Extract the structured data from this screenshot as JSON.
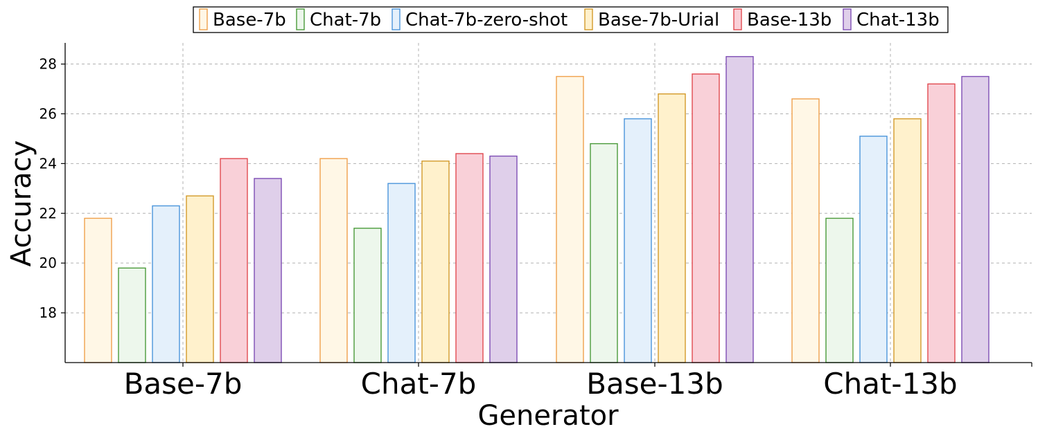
{
  "chart_data": {
    "type": "bar",
    "title": "",
    "xlabel": "Generator",
    "ylabel": "Accuracy",
    "categories": [
      "Base-7b",
      "Chat-7b",
      "Base-13b",
      "Chat-13b"
    ],
    "ylim": [
      16,
      28.85
    ],
    "yticks": [
      18,
      20,
      22,
      24,
      26,
      28
    ],
    "ytick_labels": [
      "18",
      "20",
      "22",
      "24",
      "26",
      "28"
    ],
    "grid": true,
    "legend_position": "top-center",
    "series": [
      {
        "name": "Base-7b",
        "values": [
          21.8,
          24.2,
          27.5,
          26.6
        ],
        "fill": "#fff7e6",
        "stroke": "#f0a04b"
      },
      {
        "name": "Chat-7b",
        "values": [
          19.8,
          21.4,
          24.8,
          21.8
        ],
        "fill": "#edf7ec",
        "stroke": "#4a9a3a"
      },
      {
        "name": "Chat-7b-zero-shot",
        "values": [
          22.3,
          23.2,
          25.8,
          25.1
        ],
        "fill": "#e4f0fb",
        "stroke": "#4a95db"
      },
      {
        "name": "Base-7b-Urial",
        "values": [
          22.7,
          24.1,
          26.8,
          25.8
        ],
        "fill": "#fff1cc",
        "stroke": "#d39a2a"
      },
      {
        "name": "Base-13b",
        "values": [
          24.2,
          24.4,
          27.6,
          27.2
        ],
        "fill": "#f9d0d8",
        "stroke": "#e0494f"
      },
      {
        "name": "Chat-13b",
        "values": [
          23.4,
          24.3,
          28.3,
          27.5
        ],
        "fill": "#dfcfea",
        "stroke": "#7e4db5"
      }
    ]
  }
}
